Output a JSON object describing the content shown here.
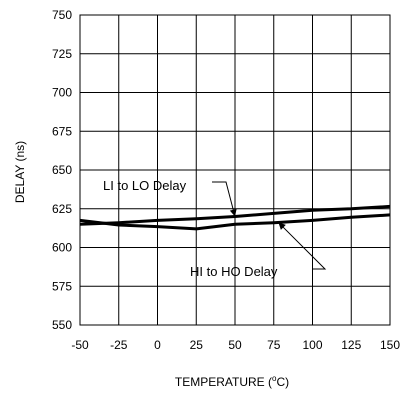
{
  "chart_data": {
    "type": "line",
    "xlabel": "TEMPERATURE (",
    "xlabel_sup": "o",
    "xlabel_tail": "C)",
    "ylabel": "DELAY (ns)",
    "xlim": [
      -50,
      150
    ],
    "ylim": [
      550,
      750
    ],
    "x_ticks": [
      "-50",
      "-25",
      "0",
      "25",
      "50",
      "75",
      "100",
      "125",
      "150"
    ],
    "y_ticks": [
      "550",
      "575",
      "600",
      "625",
      "650",
      "675",
      "700",
      "725",
      "750"
    ],
    "grid": true,
    "series": [
      {
        "name": "LI to LO Delay",
        "x": [
          -50,
          -25,
          0,
          25,
          50,
          75,
          100,
          125,
          150
        ],
        "y": [
          615,
          616,
          617.5,
          618.5,
          620,
          622,
          624,
          625,
          626.5
        ]
      },
      {
        "name": "HI to HO Delay",
        "x": [
          -50,
          -25,
          0,
          25,
          50,
          75,
          100,
          125,
          150
        ],
        "y": [
          617.5,
          614.5,
          613.5,
          612,
          615,
          616,
          617.5,
          619.5,
          621
        ]
      }
    ],
    "annotations": [
      {
        "text": "LI to LO Delay",
        "series": 0,
        "at_x": 50
      },
      {
        "text": "HI to HO Delay",
        "series": 1,
        "at_x": 78
      }
    ]
  }
}
